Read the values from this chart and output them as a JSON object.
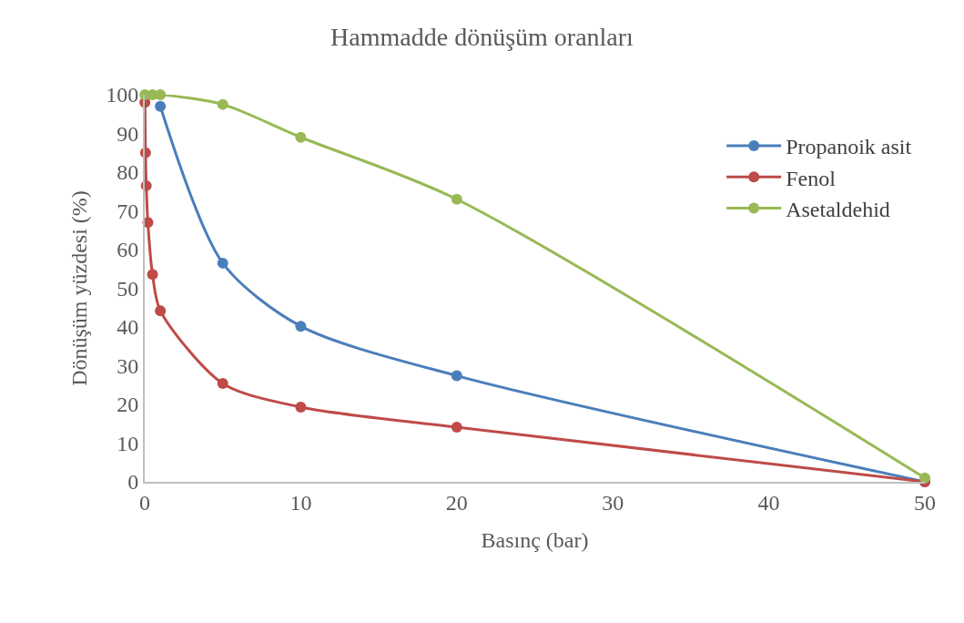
{
  "chart_data": {
    "type": "line",
    "title": "Hammadde dönüşüm oranları",
    "xlabel": "Basınç (bar)",
    "ylabel": "Dönüşüm yüzdesi (%)",
    "xlim": [
      0,
      50
    ],
    "xticks": [
      0,
      10,
      20,
      30,
      40,
      50
    ],
    "ylim": [
      0,
      100
    ],
    "yticks": [
      0,
      10,
      20,
      30,
      40,
      50,
      60,
      70,
      80,
      90,
      100
    ],
    "grid": false,
    "legend": "right",
    "marker": "circle",
    "line_style": "solid",
    "series": [
      {
        "name": "Propanoik asit",
        "color": "#4a7ebb",
        "x": [
          1,
          5,
          10,
          20,
          50
        ],
        "values": [
          97,
          56.5,
          40.2,
          27.4,
          0
        ]
      },
      {
        "name": "Fenol",
        "color": "#be4b48",
        "x": [
          0.01,
          0.05,
          0.1,
          0.2,
          0.5,
          1,
          5,
          10,
          20,
          50
        ],
        "values": [
          98,
          85,
          76.5,
          67,
          53.6,
          44.2,
          25.4,
          19.3,
          14.1,
          0
        ]
      },
      {
        "name": "Asetaldehid",
        "color": "#98b954",
        "x": [
          0.01,
          0.5,
          1,
          5,
          10,
          20,
          50
        ],
        "values": [
          100,
          100,
          100,
          97.5,
          89,
          73,
          1
        ]
      }
    ]
  }
}
